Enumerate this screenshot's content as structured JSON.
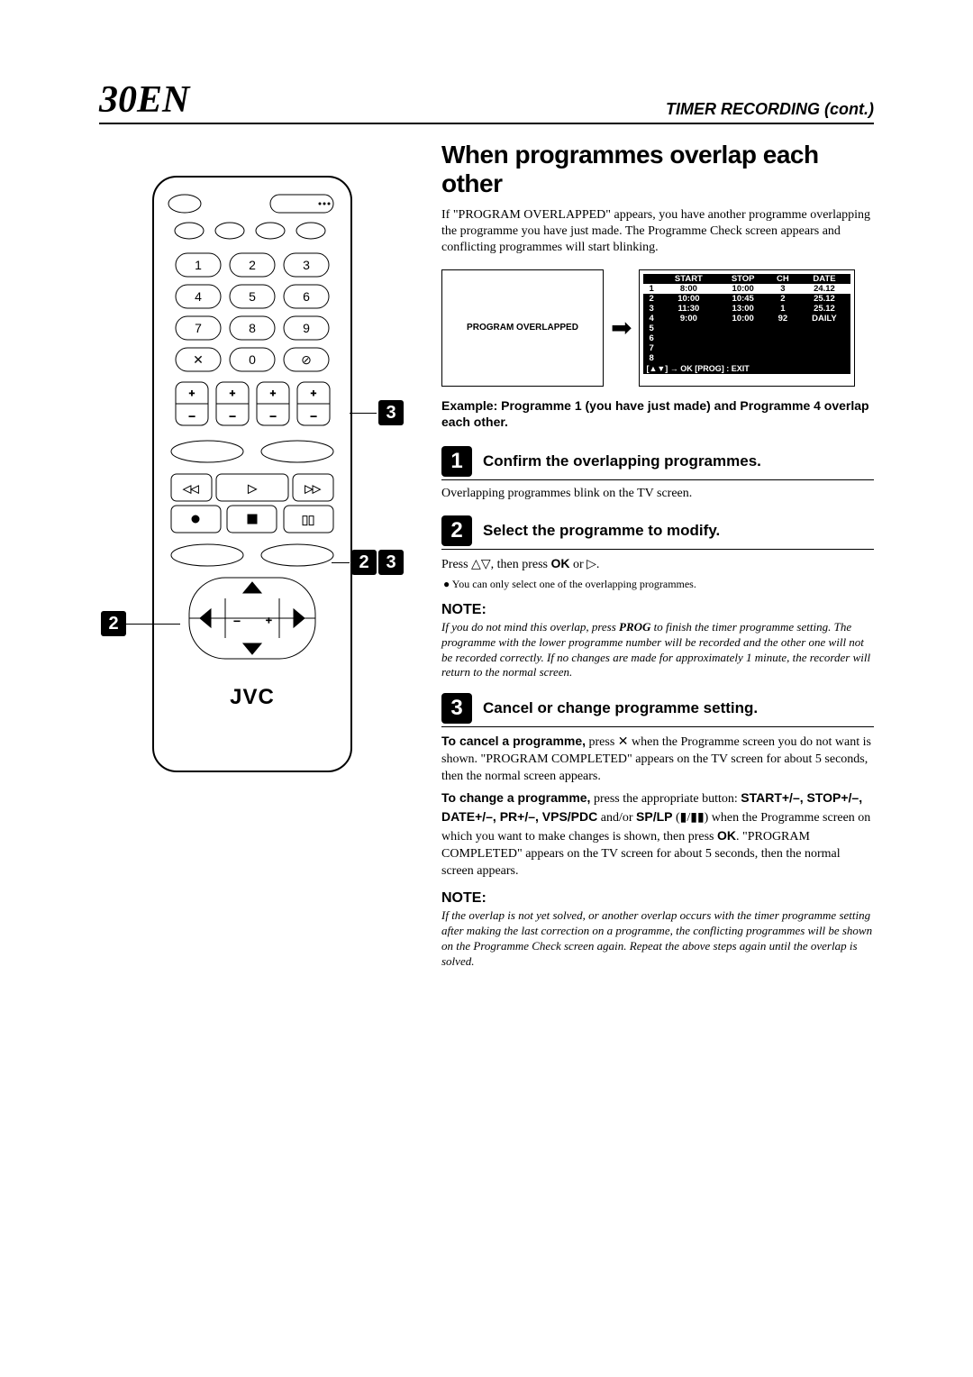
{
  "page": {
    "number": "30",
    "lang": "EN",
    "header_title": "TIMER RECORDING (cont.)"
  },
  "section_title": "When programmes overlap each other",
  "intro": "If \"PROGRAM OVERLAPPED\" appears, you have another programme overlapping the programme you have just made. The Programme Check screen appears and conflicting programmes will start blinking.",
  "osd": {
    "left_text": "PROGRAM OVERLAPPED",
    "headers": [
      "",
      "START",
      "STOP",
      "CH",
      "DATE"
    ],
    "rows": [
      [
        "1",
        "8:00",
        "10:00",
        "3",
        "24.12"
      ],
      [
        "2",
        "10:00",
        "10:45",
        "2",
        "25.12"
      ],
      [
        "3",
        "11:30",
        "13:00",
        "1",
        "25.12"
      ],
      [
        "4",
        "9:00",
        "10:00",
        "92",
        "DAILY"
      ],
      [
        "5",
        "",
        "",
        "",
        ""
      ],
      [
        "6",
        "",
        "",
        "",
        ""
      ],
      [
        "7",
        "",
        "",
        "",
        ""
      ],
      [
        "8",
        "",
        "",
        "",
        ""
      ]
    ],
    "highlight_row": 0,
    "footer": "[▲▼] → OK   [PROG] : EXIT"
  },
  "example": "Example: Programme 1 (you have just made) and Programme 4 overlap each other.",
  "steps": {
    "s1": {
      "num": "1",
      "title": "Confirm the overlapping programmes.",
      "body": "Overlapping programmes blink on the TV screen."
    },
    "s2": {
      "num": "2",
      "title": "Select the programme to modify.",
      "body_pre": "Press △▽, then press ",
      "body_ok": "OK",
      "body_post": " or ▷.",
      "bullet": "● You can only select one of the overlapping programmes."
    },
    "s3": {
      "num": "3",
      "title": "Cancel or change programme setting.",
      "p1_lead": "To cancel a programme,",
      "p1_rest": " press ✕ when the Programme screen you do not want is shown. \"PROGRAM COMPLETED\" appears on the TV screen for about 5 seconds, then the normal screen appears.",
      "p2_lead": "To change a programme,",
      "p2_rest1": " press the appropriate button: ",
      "p2_btns": "START+/–, STOP+/–, DATE+/–, PR+/–, VPS/PDC",
      "p2_rest2": " and/or ",
      "p2_splp": "SP/LP",
      "p2_rest3": " (▮/▮▮) when the Programme screen on which you want to make changes is shown, then press ",
      "p2_ok": "OK",
      "p2_rest4": ". \"PROGRAM COMPLETED\" appears on the TV screen for about 5 seconds, then the normal screen appears."
    }
  },
  "notes": {
    "n1": {
      "label": "NOTE:",
      "body": "If you do not mind this overlap, press PROG to finish the timer programme setting. The programme with the lower programme number will be recorded and the other one will not be recorded correctly. If no changes are made for approximately 1 minute, the recorder will return to the normal screen."
    },
    "n2": {
      "label": "NOTE:",
      "body": "If the overlap is not yet solved, or another overlap occurs with the timer programme setting after making the last correction on a programme, the conflicting programmes will be shown on the Programme Check screen again. Repeat the above steps again until the overlap is solved."
    }
  },
  "remote": {
    "brand": "JVC",
    "keypad": [
      "1",
      "2",
      "3",
      "4",
      "5",
      "6",
      "7",
      "8",
      "9",
      "✕",
      "0",
      "⊘"
    ]
  },
  "callouts": {
    "c1": "3",
    "c2a": "2",
    "c2b": "3",
    "c3": "2"
  }
}
